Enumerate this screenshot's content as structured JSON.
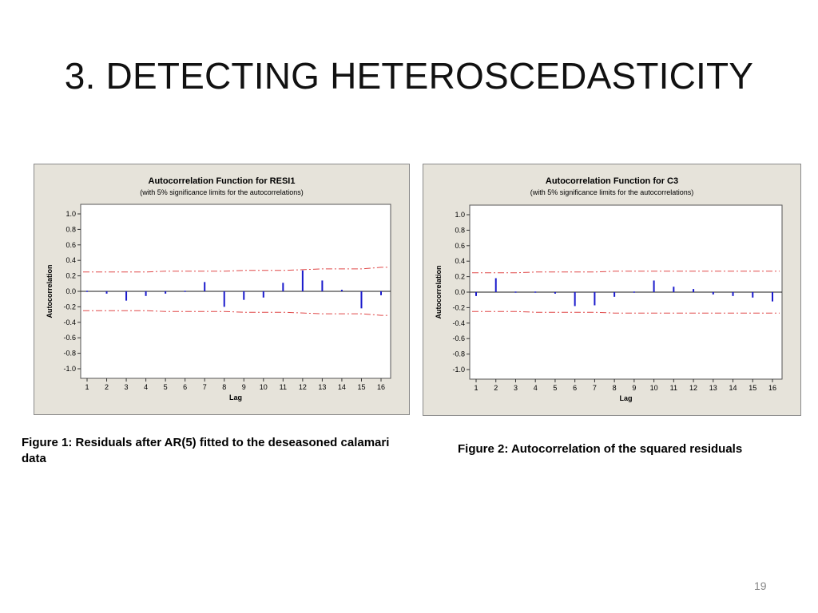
{
  "slide": {
    "title": "3. DETECTING HETEROSCEDASTICITY",
    "page_number": "19"
  },
  "captions": {
    "figure1": "Figure 1: Residuals after AR(5) fitted to the deseasoned calamari data",
    "figure2": "Figure 2: Autocorrelation of the squared residuals"
  },
  "colors": {
    "bars": "#1a1acc",
    "limits": "#e04848",
    "panel_bg": "#e6e3da",
    "plot_bg": "#ffffff"
  },
  "chart_data": [
    {
      "type": "bar",
      "title": "Autocorrelation Function for RESI1",
      "subtitle": "(with 5% significance limits for the autocorrelations)",
      "xlabel": "Lag",
      "ylabel": "Autocorrelation",
      "ylim": [
        -1.0,
        1.0
      ],
      "yticks": [
        "1.0",
        "0.8",
        "0.6",
        "0.4",
        "0.2",
        "0.0",
        "-0.2",
        "-0.4",
        "-0.6",
        "-0.8",
        "-1.0"
      ],
      "categories": [
        1,
        2,
        3,
        4,
        5,
        6,
        7,
        8,
        9,
        10,
        11,
        12,
        13,
        14,
        15,
        16
      ],
      "values": [
        0.01,
        -0.03,
        -0.12,
        -0.06,
        -0.03,
        -0.01,
        0.12,
        -0.2,
        -0.11,
        -0.08,
        0.11,
        0.27,
        0.14,
        0.02,
        -0.22,
        -0.05
      ],
      "significance_upper": [
        0.25,
        0.25,
        0.25,
        0.25,
        0.26,
        0.26,
        0.26,
        0.26,
        0.27,
        0.27,
        0.27,
        0.28,
        0.29,
        0.29,
        0.29,
        0.31
      ],
      "significance_lower": [
        -0.25,
        -0.25,
        -0.25,
        -0.25,
        -0.26,
        -0.26,
        -0.26,
        -0.26,
        -0.27,
        -0.27,
        -0.27,
        -0.28,
        -0.29,
        -0.29,
        -0.29,
        -0.31
      ]
    },
    {
      "type": "bar",
      "title": "Autocorrelation Function for C3",
      "subtitle": "(with 5% significance limits for the autocorrelations)",
      "xlabel": "Lag",
      "ylabel": "Autocorrelation",
      "ylim": [
        -1.0,
        1.0
      ],
      "yticks": [
        "1.0",
        "0.8",
        "0.6",
        "0.4",
        "0.2",
        "0.0",
        "-0.2",
        "-0.4",
        "-0.6",
        "-0.8",
        "-1.0"
      ],
      "categories": [
        1,
        2,
        3,
        4,
        5,
        6,
        7,
        8,
        9,
        10,
        11,
        12,
        13,
        14,
        15,
        16
      ],
      "values": [
        -0.05,
        0.18,
        0.01,
        0.01,
        -0.02,
        -0.18,
        -0.17,
        -0.06,
        0.01,
        0.15,
        0.07,
        0.04,
        -0.03,
        -0.05,
        -0.07,
        -0.12
      ],
      "significance_upper": [
        0.25,
        0.25,
        0.25,
        0.26,
        0.26,
        0.26,
        0.26,
        0.27,
        0.27,
        0.27,
        0.27,
        0.27,
        0.27,
        0.27,
        0.27,
        0.27
      ],
      "significance_lower": [
        -0.25,
        -0.25,
        -0.25,
        -0.26,
        -0.26,
        -0.26,
        -0.26,
        -0.27,
        -0.27,
        -0.27,
        -0.27,
        -0.27,
        -0.27,
        -0.27,
        -0.27,
        -0.27
      ]
    }
  ]
}
